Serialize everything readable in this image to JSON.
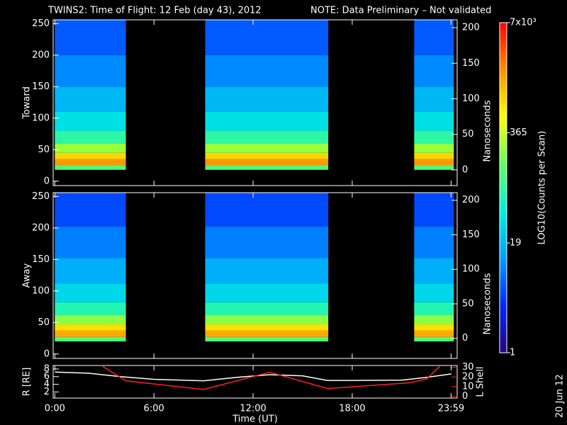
{
  "chart_data": [
    {
      "type": "heatmap",
      "title": "TWINS2: Time of Flight: 12 Feb (day  43), 2012",
      "note": "NOTE: Data Preliminary – Not validated",
      "note_color": "#ff2020",
      "ylabel": "Toward",
      "y2label": "Nanoseconds",
      "xlim": [
        -0.1,
        24.35
      ],
      "xticks": [
        {
          "value": 0,
          "label": "0:00"
        },
        {
          "value": 6,
          "label": "6:00"
        },
        {
          "value": 12,
          "label": "12:00"
        },
        {
          "value": 18,
          "label": "18:00"
        },
        {
          "value": 23.983,
          "label": "23:59"
        }
      ],
      "ylim": [
        -7,
        256
      ],
      "yticks": [
        0,
        50,
        100,
        150,
        200,
        250
      ],
      "y2lim": [
        -22,
        211
      ],
      "y2ticks": [
        0,
        50,
        100,
        150,
        200
      ],
      "intervals": [
        [
          0,
          4.3
        ],
        [
          9.1,
          16.55
        ],
        [
          21.75,
          24.15
        ]
      ],
      "bins": [
        18,
        25,
        35,
        45,
        60,
        80,
        110,
        150,
        200,
        256
      ],
      "counts": [
        120,
        1800,
        900,
        250,
        80,
        35,
        18,
        10,
        6
      ],
      "colormap": [
        "#280088",
        "#0028ff",
        "#00a0ff",
        "#00f0e0",
        "#60ff60",
        "#ffff00",
        "#ff9000",
        "#ff0000"
      ],
      "colorbar": {
        "label": "LOG10(Counts per Scan)",
        "clim": [
          1,
          7000
        ],
        "log": true,
        "ticks": [
          1,
          19,
          365,
          {
            "value": 7000,
            "label": "7x10³"
          }
        ]
      }
    },
    {
      "type": "heatmap",
      "ylabel": "Away",
      "y2label": "Nanoseconds",
      "xlim": [
        -0.1,
        24.35
      ],
      "xticks": [
        {
          "value": 0,
          "label": "0:00"
        },
        {
          "value": 6,
          "label": "6:00"
        },
        {
          "value": 12,
          "label": "12:00"
        },
        {
          "value": 18,
          "label": "18:00"
        },
        {
          "value": 23.983,
          "label": "23:59"
        }
      ],
      "ylim": [
        -7,
        256
      ],
      "yticks": [
        0,
        50,
        100,
        150,
        200,
        250
      ],
      "y2lim": [
        -29,
        211
      ],
      "y2ticks": [
        0,
        50,
        100,
        150,
        200
      ],
      "intervals": [
        [
          0,
          4.3
        ],
        [
          9.1,
          16.55
        ],
        [
          21.75,
          24.15
        ]
      ],
      "bins": [
        20,
        27,
        37,
        47,
        62,
        82,
        112,
        152,
        202,
        256
      ],
      "counts": [
        120,
        1500,
        800,
        220,
        70,
        30,
        16,
        9,
        5
      ]
    },
    {
      "type": "line",
      "ylabel": "R [RE]",
      "y2label": "L Shell",
      "y2color": "#ff2020",
      "xlabel": "Time (UT)",
      "xlim": [
        -0.1,
        24.35
      ],
      "xticks": [
        {
          "value": 0,
          "label": "0:00"
        },
        {
          "value": 6,
          "label": "6:00"
        },
        {
          "value": 12,
          "label": "12:00"
        },
        {
          "value": 18,
          "label": "18:00"
        },
        {
          "value": 23.983,
          "label": "23:59"
        }
      ],
      "ylim": [
        0.4,
        8.9
      ],
      "yticks": [
        2,
        4,
        6,
        8
      ],
      "y2lim": [
        -2,
        32
      ],
      "y2ticks": [
        0,
        10,
        20,
        30
      ],
      "series": [
        {
          "color": "#ffffff",
          "x": [
            0,
            2,
            4,
            6,
            9,
            11,
            13,
            15,
            16.5,
            18,
            21,
            22.5,
            24
          ],
          "values": [
            7.2,
            6.9,
            6.0,
            5.3,
            4.9,
            5.8,
            6.5,
            6.2,
            5.0,
            5.0,
            5.1,
            5.8,
            6.7
          ]
        },
        {
          "color": "#ff2020",
          "axis": "y2",
          "x": [
            2.9,
            4.3,
            9,
            13,
            16.5,
            21.5,
            22.5,
            23.3
          ],
          "values": [
            31,
            16,
            7,
            25,
            8,
            14,
            18,
            31
          ]
        }
      ]
    }
  ],
  "stamp": "20 Jun 12"
}
